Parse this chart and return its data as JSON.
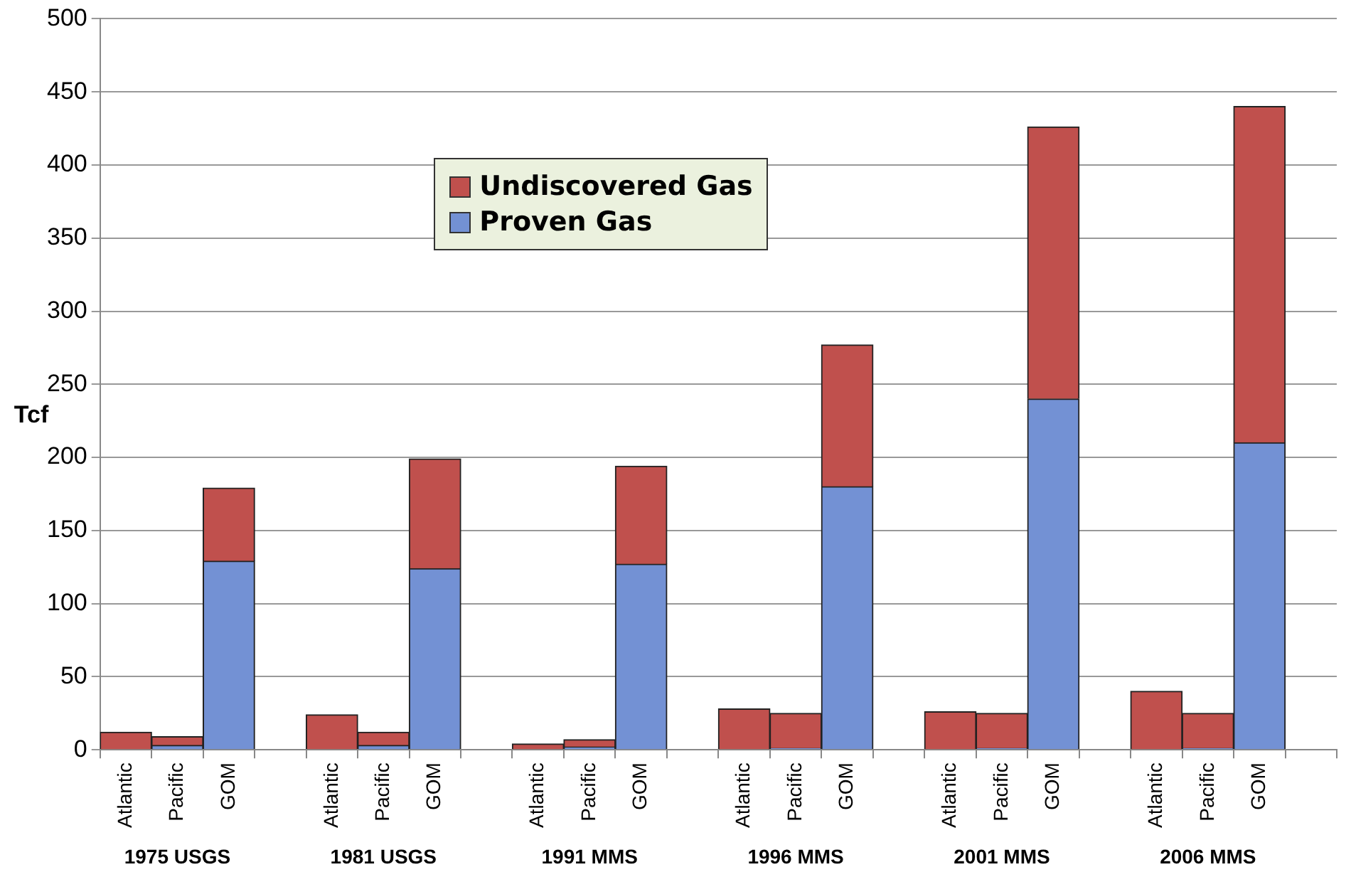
{
  "chart_data": {
    "type": "bar",
    "ylabel": "Tcf",
    "stacked": true,
    "grid": "y",
    "legend": "top",
    "categories": [
      "Atlantic",
      "Pacific",
      "GOM",
      null,
      "Atlantic",
      "Pacific",
      "GOM",
      null,
      "Atlantic",
      "Pacific",
      "GOM",
      null,
      "Atlantic",
      "Pacific",
      "GOM",
      null,
      "Atlantic",
      "Pacific",
      "GOM",
      null,
      "Atlantic",
      "Pacific",
      "GOM",
      null
    ],
    "series": [
      {
        "name": "Proven Gas",
        "color": "#7391d4",
        "values": [
          0,
          3,
          129,
          null,
          0,
          3,
          124,
          null,
          0,
          2,
          127,
          null,
          0,
          1,
          180,
          null,
          0,
          1,
          240,
          null,
          0,
          1,
          210,
          null
        ]
      },
      {
        "name": "Undiscovered Gas",
        "color": "#c0504d",
        "values": [
          12,
          6,
          50,
          null,
          24,
          9,
          75,
          null,
          4,
          5,
          67,
          null,
          28,
          24,
          97,
          null,
          26,
          24,
          186,
          null,
          40,
          24,
          230,
          null
        ]
      }
    ],
    "ylim": [
      0,
      500
    ],
    "yticks": [
      0,
      50,
      100,
      150,
      200,
      250,
      300,
      350,
      400,
      450,
      500
    ],
    "annotations": [
      "1975 USGS",
      "1981 USGS",
      "1991 MMS",
      "1996 MMS",
      "2001 MMS",
      "2006 MMS"
    ]
  }
}
